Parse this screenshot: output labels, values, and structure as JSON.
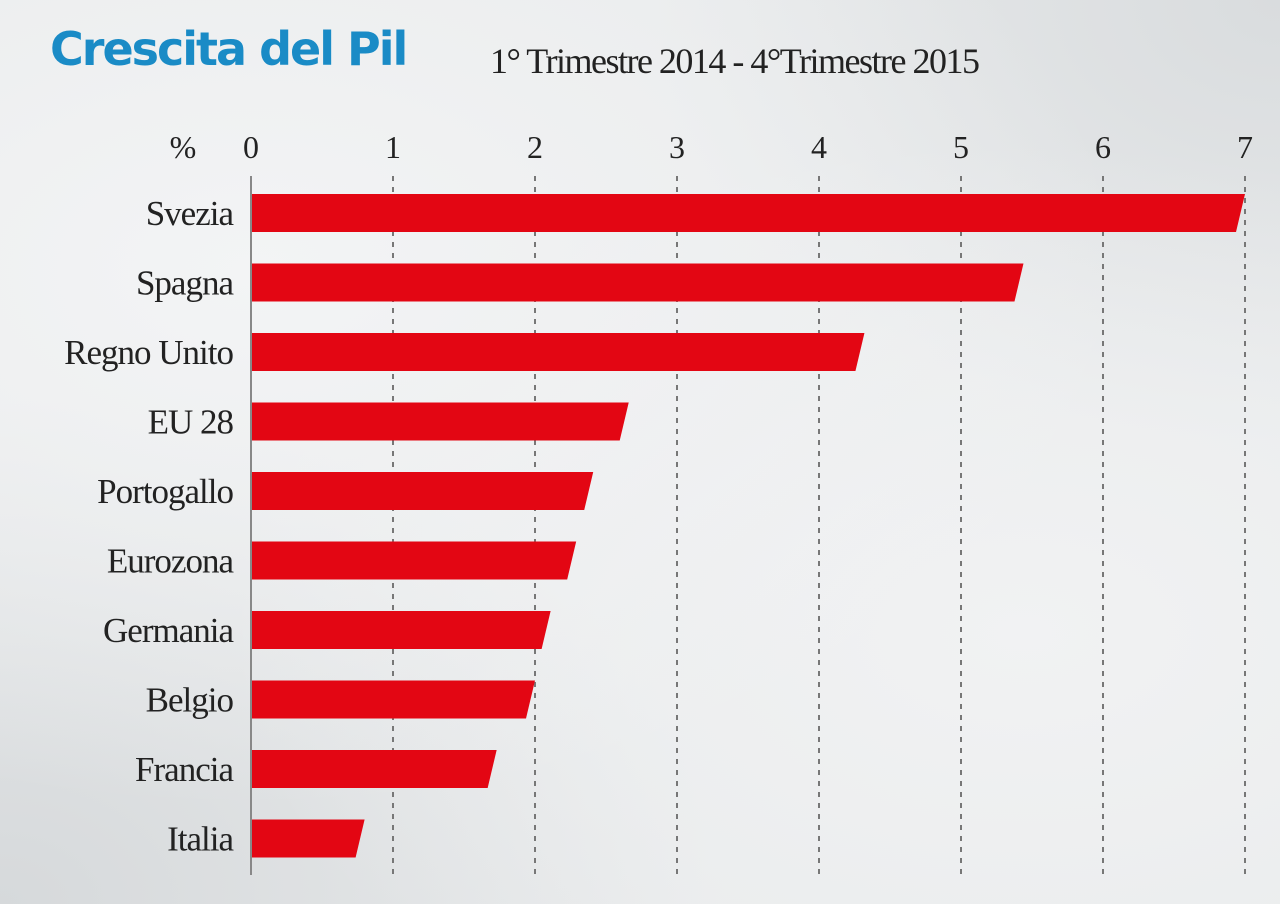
{
  "chart_data": {
    "type": "bar",
    "orientation": "horizontal",
    "title": "Crescita del Pil",
    "subtitle": "1° Trimestre 2014 - 4°Trimestre 2015",
    "unit_label": "%",
    "categories": [
      "Svezia",
      "Spagna",
      "Regno Unito",
      "EU 28",
      "Portogallo",
      "Eurozona",
      "Germania",
      "Belgio",
      "Francia",
      "Italia"
    ],
    "values": [
      7.0,
      5.44,
      4.32,
      2.66,
      2.41,
      2.29,
      2.11,
      2.0,
      1.73,
      0.8
    ],
    "xlim": [
      0,
      7
    ],
    "ticks": [
      "0",
      "1",
      "2",
      "3",
      "4",
      "5",
      "6",
      "7"
    ],
    "grid": "vertical dashed",
    "bar_color": "#e30613",
    "title_color": "#1a8bc6"
  }
}
